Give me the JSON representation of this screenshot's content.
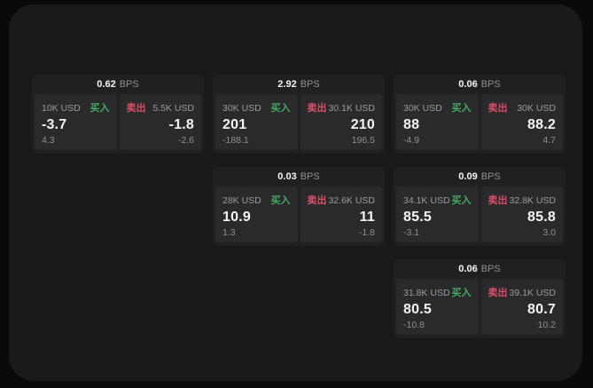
{
  "labels": {
    "bps": "BPS",
    "buy": "买入",
    "sell": "卖出"
  },
  "colors": {
    "buy": "#41ae5c",
    "sell": "#d84f66",
    "window_bg": "#1a1a1c",
    "card_bg": "#202023",
    "tile_bg": "#2a2a2d"
  },
  "cards": [
    {
      "bps": "0.62",
      "buy_amount": "10K USD",
      "buy_price": "-3.7",
      "buy_change": "4.3",
      "sell_amount": "5.5K USD",
      "sell_price": "-1.8",
      "sell_change": "-2.6"
    },
    {
      "bps": "2.92",
      "buy_amount": "30K USD",
      "buy_price": "201",
      "buy_change": "-188.1",
      "sell_amount": "30.1K USD",
      "sell_price": "210",
      "sell_change": "196.5"
    },
    {
      "bps": "0.06",
      "buy_amount": "30K USD",
      "buy_price": "88",
      "buy_change": "-4.9",
      "sell_amount": "30K USD",
      "sell_price": "88.2",
      "sell_change": "4.7"
    },
    {
      "bps": "0.03",
      "buy_amount": "28K USD",
      "buy_price": "10.9",
      "buy_change": "1.3",
      "sell_amount": "32.6K USD",
      "sell_price": "11",
      "sell_change": "-1.8"
    },
    {
      "bps": "0.09",
      "buy_amount": "34.1K USD",
      "buy_price": "85.5",
      "buy_change": "-3.1",
      "sell_amount": "32.8K USD",
      "sell_price": "85.8",
      "sell_change": "3.0"
    },
    {
      "bps": "0.06",
      "buy_amount": "31.8K USD",
      "buy_price": "80.5",
      "buy_change": "-10.8",
      "sell_amount": "39.1K USD",
      "sell_price": "80.7",
      "sell_change": "10.2"
    }
  ]
}
